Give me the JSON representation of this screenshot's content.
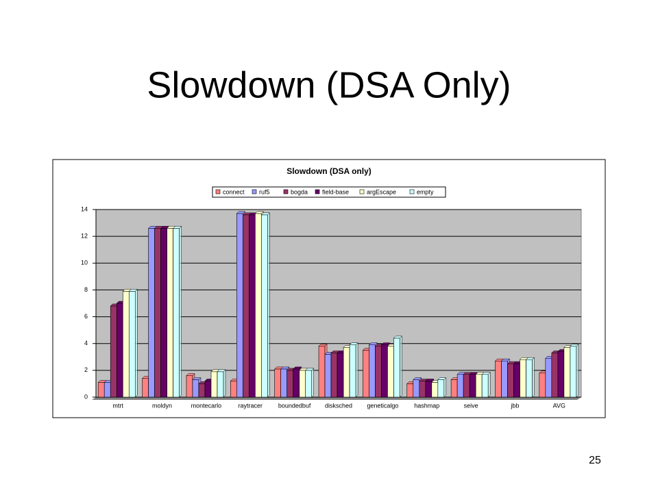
{
  "slide": {
    "title": "Slowdown (DSA Only)",
    "page_number": "25"
  },
  "chart_data": {
    "type": "bar",
    "title": "Slowdown (DSA only)",
    "categories": [
      "mtrt",
      "moldyn",
      "montecarlo",
      "raytracer",
      "boundedbuf",
      "disksched",
      "geneticalgo",
      "hashmap",
      "seive",
      "jbb",
      "AVG"
    ],
    "series": [
      {
        "name": "connect",
        "color": "#ff8080",
        "values": [
          1.1,
          1.4,
          1.6,
          1.2,
          2.1,
          3.8,
          3.5,
          1.0,
          1.3,
          2.7,
          1.8
        ]
      },
      {
        "name": "ruf5",
        "color": "#9999ff",
        "values": [
          1.1,
          12.6,
          1.3,
          13.7,
          2.1,
          3.2,
          3.9,
          1.3,
          1.7,
          2.7,
          2.9
        ]
      },
      {
        "name": "bogda",
        "color": "#993366",
        "values": [
          6.8,
          12.6,
          1.0,
          13.6,
          2.0,
          3.3,
          3.8,
          1.2,
          1.7,
          2.5,
          3.3
        ]
      },
      {
        "name": "field-base",
        "color": "#660066",
        "values": [
          7.0,
          12.6,
          1.2,
          13.6,
          2.1,
          3.3,
          3.9,
          1.2,
          1.7,
          2.5,
          3.4
        ]
      },
      {
        "name": "argEscape",
        "color": "#ffffcc",
        "values": [
          7.9,
          12.6,
          1.9,
          13.7,
          2.0,
          3.7,
          3.8,
          1.1,
          1.7,
          2.8,
          3.7
        ]
      },
      {
        "name": "empty",
        "color": "#ccffff",
        "values": [
          7.9,
          12.6,
          1.9,
          13.6,
          2.0,
          3.9,
          4.4,
          1.3,
          1.7,
          2.8,
          3.8
        ]
      }
    ],
    "ylim": [
      0,
      14
    ],
    "yticks": [
      0,
      2,
      4,
      6,
      8,
      10,
      12,
      14
    ],
    "grid": true,
    "legend": "top",
    "plot_background": "#c0c0c0"
  }
}
